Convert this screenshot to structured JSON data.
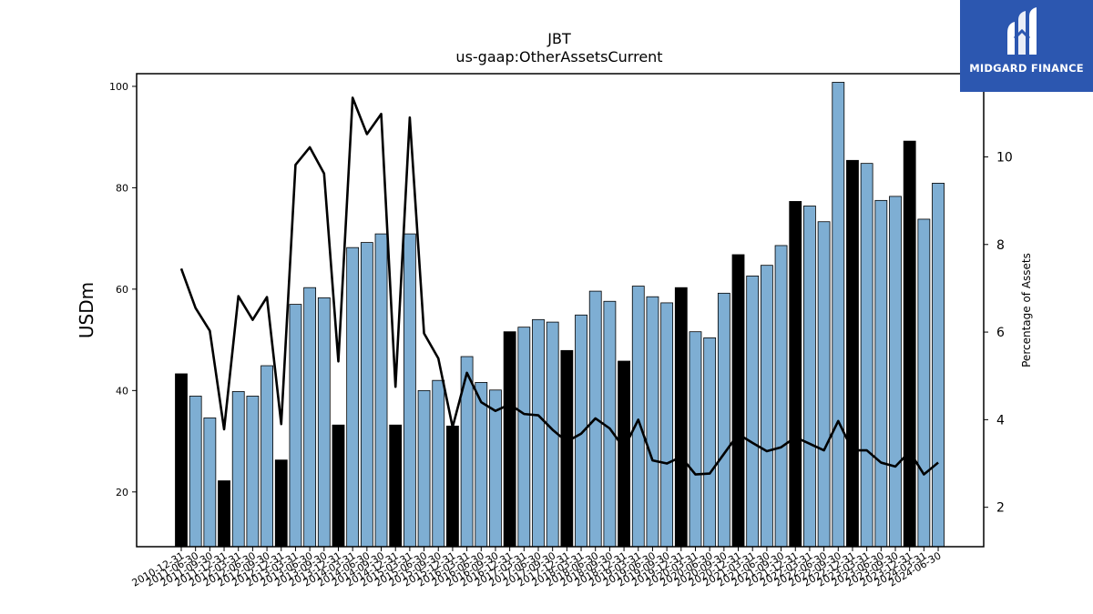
{
  "brand": {
    "name": "MIDGARD FINANCE",
    "logo_icon": "midgard-m-icon",
    "background": "#2c57b0",
    "text_color": "#ffffff"
  },
  "chart_data": {
    "type": "bar",
    "title": "JBT",
    "subtitle": "us-gaap:OtherAssetsCurrent",
    "ylabel": "USDm",
    "ylabel_right": "Percentage of Assets",
    "ylim": [
      9.2,
      102.5
    ],
    "ylim_right": [
      1.1,
      11.9
    ],
    "yticks": [
      20,
      40,
      60,
      80,
      100
    ],
    "yticks_right": [
      2,
      4,
      6,
      8,
      10
    ],
    "grid": false,
    "legend": "none",
    "colors": {
      "bar": "#7eaed3",
      "bar_year_end": "#000000",
      "bar_edge": "#000000",
      "line": "#000000"
    },
    "categories": [
      "2010-12-31",
      "2011-06-30",
      "2011-09-30",
      "2011-12-31",
      "2012-03-31",
      "2012-06-30",
      "2012-09-30",
      "2012-12-31",
      "2013-03-31",
      "2013-06-30",
      "2013-09-30",
      "2013-12-31",
      "2014-03-31",
      "2014-06-30",
      "2014-09-30",
      "2014-12-31",
      "2015-03-31",
      "2015-06-30",
      "2015-09-30",
      "2015-12-31",
      "2016-03-31",
      "2016-06-30",
      "2016-09-30",
      "2016-12-31",
      "2017-03-31",
      "2017-06-30",
      "2017-09-30",
      "2017-12-31",
      "2018-03-31",
      "2018-06-30",
      "2018-09-30",
      "2018-12-31",
      "2019-03-31",
      "2019-06-30",
      "2019-09-30",
      "2019-12-31",
      "2020-03-31",
      "2020-06-30",
      "2020-09-30",
      "2020-12-31",
      "2021-03-31",
      "2021-06-30",
      "2021-09-30",
      "2021-12-31",
      "2022-03-31",
      "2022-06-30",
      "2022-09-30",
      "2022-12-31",
      "2023-03-31",
      "2023-06-30",
      "2023-09-30",
      "2023-12-31",
      "2024-03-31",
      "2024-06-30"
    ],
    "tick_labels": [
      "2010-12-31",
      "2011-06-30",
      "2011-09-30",
      "2011-12-31",
      "2012-03-31",
      "2012-06-30",
      "2012-09-30",
      "2012-12-31",
      "2013-03-31",
      "2013-06-30",
      "2013-09-30",
      "2013-12-31",
      "2014-03-31",
      "2014-06-30",
      "2014-09-30",
      "2014-12-31",
      "2015-03-31",
      "2015-06-30",
      "2015-09-30",
      "2015-12-31",
      "2016-03-31",
      "2016-06-30",
      "2016-09-30",
      "2016-12-31",
      "2017-03-31",
      "2017-06-30",
      "2017-09-30",
      "2017-12-31",
      "2018-03-31",
      "2018-06-30",
      "2018-09-30",
      "2018-12-31",
      "2019-03-31",
      "2019-06-30",
      "2019-09-30",
      "2019-12-31",
      "2020-03-31",
      "2020-06-30",
      "2020-09-30",
      "2020-12-31",
      "2021-03-31",
      "2021-06-30",
      "2021-09-30",
      "2021-12-31",
      "2022-03-31",
      "2022-06-30",
      "2022-09-30",
      "2022-12-31",
      "2023-03-31",
      "2023-06-30",
      "2023-09-30",
      "2023-12-31",
      "2024-03-31",
      "2024-06-30"
    ],
    "series": [
      {
        "type": "bar",
        "axis": "left",
        "values": [
          43.3,
          38.9,
          34.6,
          22.2,
          39.8,
          38.9,
          44.9,
          26.3,
          57.0,
          60.3,
          58.3,
          33.2,
          68.2,
          69.2,
          70.9,
          33.2,
          70.9,
          40.0,
          42.0,
          33.0,
          46.7,
          41.6,
          40.1,
          51.6,
          52.5,
          54.0,
          53.5,
          47.9,
          54.9,
          59.6,
          57.6,
          45.8,
          60.6,
          58.5,
          57.3,
          60.3,
          51.6,
          50.4,
          59.2,
          66.8,
          62.6,
          64.7,
          68.6,
          77.3,
          76.4,
          73.3,
          100.8,
          85.4,
          84.8,
          77.5,
          78.3,
          89.2,
          73.8,
          80.9
        ]
      },
      {
        "type": "line",
        "axis": "right",
        "values": [
          7.45,
          6.55,
          6.03,
          3.78,
          6.82,
          6.28,
          6.8,
          3.9,
          9.82,
          10.22,
          9.62,
          5.33,
          11.35,
          10.52,
          10.98,
          4.75,
          10.9,
          5.97,
          5.4,
          3.83,
          5.07,
          4.4,
          4.2,
          4.35,
          4.13,
          4.1,
          3.77,
          3.5,
          3.68,
          4.03,
          3.8,
          3.35,
          4.0,
          3.07,
          3.0,
          3.15,
          2.75,
          2.77,
          3.22,
          3.67,
          3.47,
          3.28,
          3.37,
          3.6,
          3.45,
          3.3,
          3.97,
          3.3,
          3.3,
          3.02,
          2.93,
          3.27,
          2.75,
          3.02
        ]
      }
    ]
  }
}
